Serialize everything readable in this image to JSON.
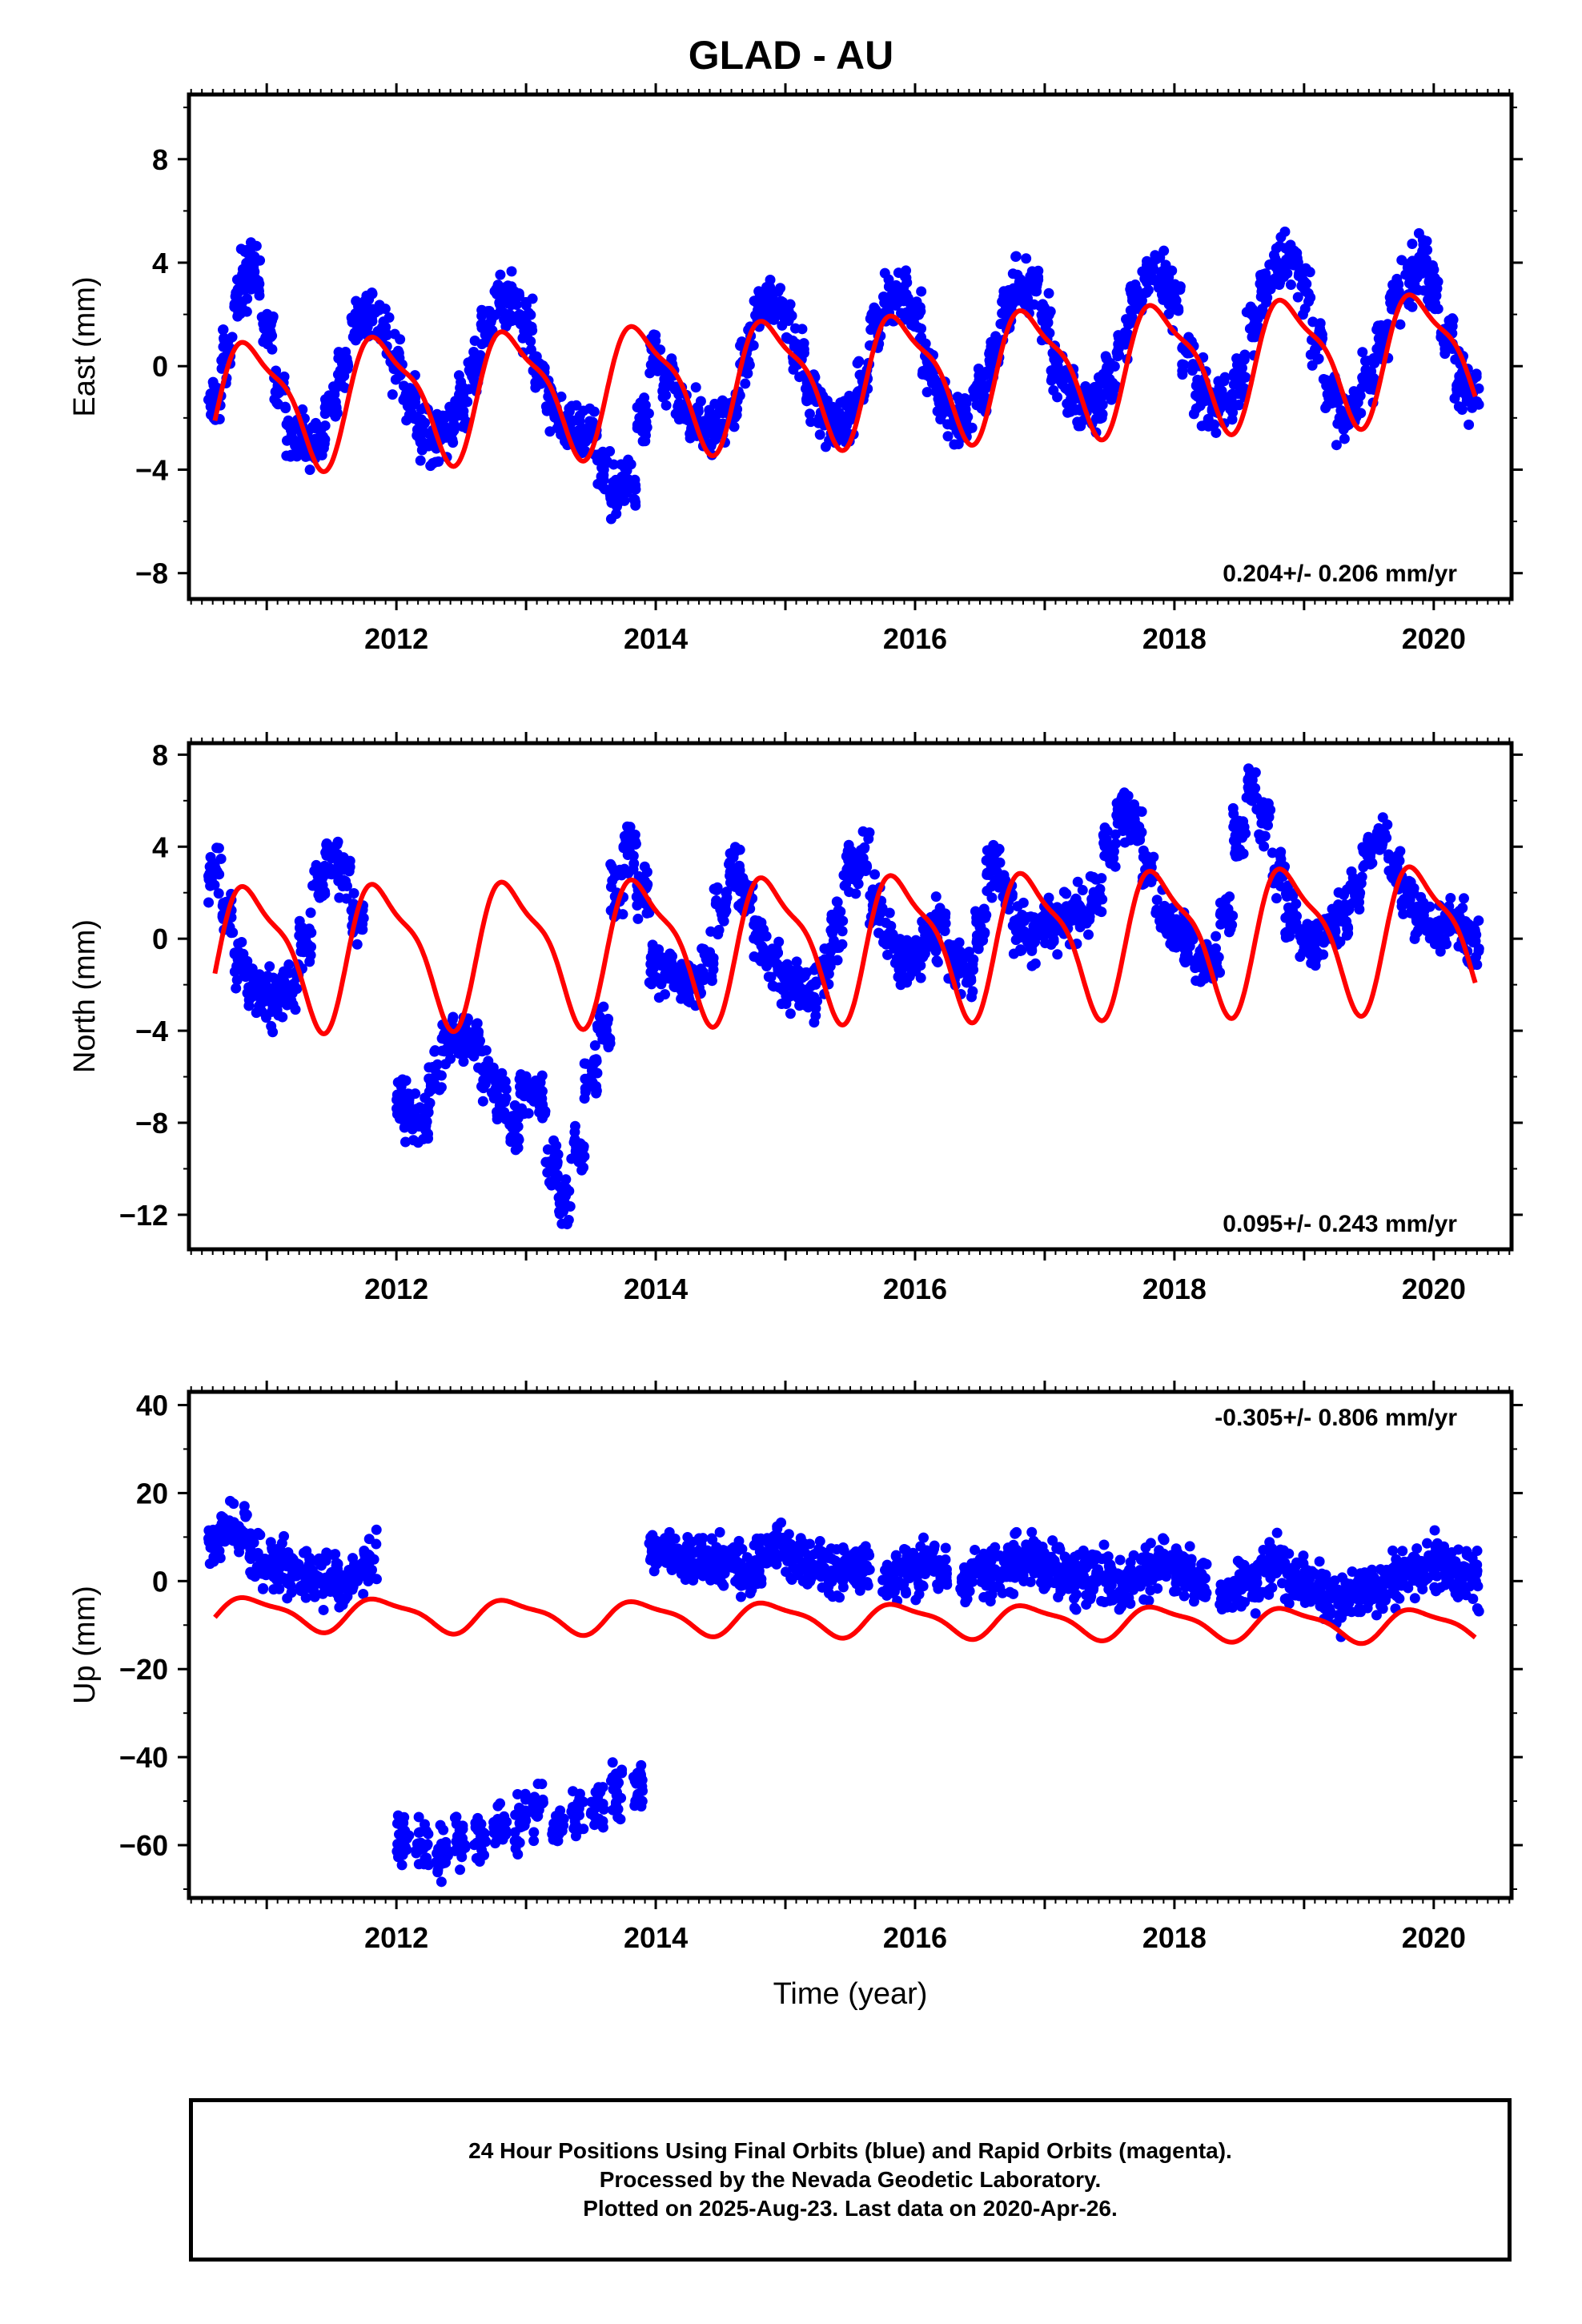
{
  "title": "GLAD - AU",
  "chart_data": [
    {
      "type": "scatter",
      "ylabel": "East (mm)",
      "xlabel": "",
      "xlim": [
        2010.4,
        2020.6
      ],
      "ylim": [
        -9,
        10.5
      ],
      "xticks": [
        "2012",
        "2014",
        "2016",
        "2018",
        "2020"
      ],
      "yticks": [
        "8",
        "4",
        "0",
        "−4",
        "−8"
      ],
      "rate_label": "0.204+/- 0.206 mm/yr",
      "rate_position": "bottom-right",
      "series": [
        {
          "kind": "points",
          "color": "#0000ff",
          "x": [
            2010.6,
            2010.7,
            2010.8,
            2010.85,
            2010.9,
            2011.0,
            2011.1,
            2011.2,
            2011.3,
            2011.4,
            2011.5,
            2011.6,
            2011.7,
            2011.8,
            2011.9,
            2012.0,
            2012.1,
            2012.2,
            2012.3,
            2012.4,
            2012.5,
            2012.6,
            2012.7,
            2012.8,
            2012.9,
            2013.0,
            2013.1,
            2013.2,
            2013.3,
            2013.4,
            2013.5,
            2013.6,
            2013.7,
            2013.8,
            2013.9,
            2014.0,
            2014.1,
            2014.2,
            2014.3,
            2014.4,
            2014.5,
            2014.6,
            2014.7,
            2014.8,
            2014.9,
            2015.0,
            2015.1,
            2015.2,
            2015.3,
            2015.4,
            2015.5,
            2015.6,
            2015.7,
            2015.8,
            2015.9,
            2016.0,
            2016.1,
            2016.2,
            2016.3,
            2016.4,
            2016.5,
            2016.6,
            2016.7,
            2016.8,
            2016.9,
            2017.0,
            2017.1,
            2017.2,
            2017.3,
            2017.4,
            2017.5,
            2017.6,
            2017.7,
            2017.8,
            2017.9,
            2018.0,
            2018.1,
            2018.2,
            2018.3,
            2018.4,
            2018.5,
            2018.6,
            2018.7,
            2018.8,
            2018.9,
            2019.0,
            2019.1,
            2019.2,
            2019.3,
            2019.4,
            2019.5,
            2019.6,
            2019.7,
            2019.8,
            2019.9,
            2020.0,
            2020.1,
            2020.2,
            2020.3
          ],
          "y": [
            -1.5,
            0.5,
            2.5,
            4.0,
            3.5,
            1.5,
            -1.0,
            -2.5,
            -3.0,
            -2.8,
            -1.5,
            0.0,
            1.5,
            2.0,
            1.5,
            0.0,
            -1.5,
            -2.5,
            -2.8,
            -2.5,
            -1.5,
            0.0,
            1.5,
            2.5,
            2.5,
            1.5,
            0.0,
            -1.5,
            -2.5,
            -2.5,
            -2.5,
            -4.0,
            -5.0,
            -4.5,
            -2.0,
            0.5,
            -0.5,
            -1.5,
            -2.0,
            -2.5,
            -2.5,
            -1.5,
            0.5,
            2.0,
            2.5,
            2.0,
            0.5,
            -1.0,
            -2.0,
            -2.5,
            -2.0,
            -0.5,
            1.5,
            2.5,
            2.8,
            2.0,
            0.0,
            -1.5,
            -2.0,
            -2.0,
            -1.0,
            0.5,
            2.0,
            3.0,
            3.0,
            2.0,
            0.0,
            -1.0,
            -1.5,
            -1.5,
            -0.5,
            1.0,
            2.5,
            3.5,
            3.5,
            2.5,
            0.5,
            -1.0,
            -1.5,
            -1.5,
            -0.5,
            1.5,
            3.0,
            4.0,
            4.0,
            3.0,
            1.0,
            -1.0,
            -2.0,
            -1.5,
            -0.5,
            1.0,
            2.5,
            3.5,
            4.0,
            3.0,
            1.0,
            -0.5,
            -1.0
          ]
        },
        {
          "kind": "fit",
          "color": "#ff0000",
          "amplitude": 2.3,
          "trend_per_year": 0.204,
          "offset": -0.5,
          "x_range": [
            2010.6,
            2020.32
          ]
        }
      ]
    },
    {
      "type": "scatter",
      "ylabel": "North (mm)",
      "xlabel": "",
      "xlim": [
        2010.4,
        2020.6
      ],
      "ylim": [
        -13.5,
        8.5
      ],
      "xticks": [
        "2012",
        "2014",
        "2016",
        "2018",
        "2020"
      ],
      "yticks": [
        "8",
        "4",
        "0",
        "−4",
        "−8",
        "−12"
      ],
      "rate_label": "0.095+/- 0.243 mm/yr",
      "rate_position": "bottom-right",
      "series": [
        {
          "kind": "points",
          "color": "#0000ff",
          "x": [
            2010.6,
            2010.7,
            2010.8,
            2010.9,
            2011.0,
            2011.1,
            2011.2,
            2011.3,
            2011.4,
            2011.5,
            2011.6,
            2011.7,
            2012.05,
            2012.1,
            2012.2,
            2012.3,
            2012.4,
            2012.5,
            2012.6,
            2012.7,
            2012.8,
            2012.9,
            2013.0,
            2013.1,
            2013.2,
            2013.3,
            2013.4,
            2013.5,
            2013.6,
            2013.7,
            2013.8,
            2013.9,
            2014.0,
            2014.1,
            2014.2,
            2014.3,
            2014.4,
            2014.5,
            2014.6,
            2014.7,
            2014.8,
            2014.9,
            2015.0,
            2015.1,
            2015.2,
            2015.3,
            2015.4,
            2015.5,
            2015.6,
            2015.7,
            2015.8,
            2015.9,
            2016.0,
            2016.1,
            2016.2,
            2016.3,
            2016.4,
            2016.5,
            2016.6,
            2016.7,
            2016.8,
            2016.9,
            2017.0,
            2017.1,
            2017.2,
            2017.3,
            2017.4,
            2017.5,
            2017.6,
            2017.7,
            2017.8,
            2017.9,
            2018.0,
            2018.1,
            2018.2,
            2018.3,
            2018.4,
            2018.5,
            2018.6,
            2018.7,
            2018.8,
            2018.9,
            2019.0,
            2019.1,
            2019.2,
            2019.3,
            2019.4,
            2019.5,
            2019.6,
            2019.7,
            2019.8,
            2019.9,
            2020.0,
            2020.1,
            2020.2,
            2020.3
          ],
          "y": [
            3.0,
            1.0,
            -1.0,
            -2.0,
            -2.5,
            -2.5,
            -2.0,
            0.0,
            2.5,
            3.5,
            3.0,
            1.0,
            -7.0,
            -7.5,
            -8.0,
            -6.0,
            -4.5,
            -4.0,
            -4.5,
            -6.0,
            -7.0,
            -8.0,
            -6.5,
            -7.0,
            -10.0,
            -11.5,
            -9.0,
            -6.0,
            -4.0,
            2.0,
            4.0,
            2.0,
            -1.0,
            -1.5,
            -2.0,
            -2.0,
            -1.0,
            1.5,
            3.0,
            2.0,
            0.0,
            -1.0,
            -2.0,
            -2.0,
            -2.5,
            -1.5,
            0.5,
            3.0,
            3.5,
            1.5,
            0.0,
            -1.0,
            -1.0,
            0.0,
            0.5,
            -1.0,
            -1.5,
            0.5,
            3.0,
            2.0,
            0.5,
            0.0,
            0.5,
            0.5,
            1.0,
            1.0,
            2.0,
            4.0,
            5.5,
            5.0,
            3.0,
            1.0,
            0.5,
            0.0,
            -1.0,
            -1.0,
            1.0,
            4.5,
            6.5,
            5.0,
            3.0,
            1.0,
            0.0,
            0.0,
            0.5,
            1.0,
            2.0,
            4.0,
            4.5,
            3.0,
            2.0,
            1.0,
            0.5,
            0.5,
            0.5,
            0.0
          ]
        },
        {
          "kind": "fit",
          "color": "#ff0000",
          "amplitude": 2.9,
          "trend_per_year": 0.095,
          "offset": -0.2,
          "x_range": [
            2010.6,
            2020.32
          ]
        }
      ]
    },
    {
      "type": "scatter",
      "ylabel": "Up (mm)",
      "xlabel": "Time (year)",
      "xlim": [
        2010.4,
        2020.6
      ],
      "ylim": [
        -72,
        43
      ],
      "xticks": [
        "2012",
        "2014",
        "2016",
        "2018",
        "2020"
      ],
      "yticks": [
        "40",
        "20",
        "0",
        "−20",
        "−40",
        "−60"
      ],
      "rate_label": "-0.305+/- 0.806 mm/yr",
      "rate_position": "top-right",
      "series": [
        {
          "kind": "points",
          "color": "#0000ff",
          "x": [
            2010.6,
            2010.7,
            2010.8,
            2010.9,
            2011.0,
            2011.1,
            2011.2,
            2011.3,
            2011.4,
            2011.5,
            2011.6,
            2011.7,
            2011.8,
            2012.05,
            2012.2,
            2012.35,
            2012.5,
            2012.65,
            2012.8,
            2012.95,
            2013.1,
            2013.25,
            2013.4,
            2013.55,
            2013.7,
            2013.85,
            2014.0,
            2014.1,
            2014.2,
            2014.3,
            2014.4,
            2014.5,
            2014.6,
            2014.7,
            2014.8,
            2014.9,
            2015.0,
            2015.1,
            2015.2,
            2015.3,
            2015.4,
            2015.5,
            2015.6,
            2015.8,
            2015.9,
            2016.0,
            2016.1,
            2016.2,
            2016.4,
            2016.5,
            2016.6,
            2016.7,
            2016.8,
            2016.9,
            2017.0,
            2017.1,
            2017.2,
            2017.3,
            2017.4,
            2017.5,
            2017.6,
            2017.7,
            2017.8,
            2017.9,
            2018.0,
            2018.1,
            2018.2,
            2018.4,
            2018.5,
            2018.6,
            2018.7,
            2018.8,
            2018.9,
            2019.0,
            2019.1,
            2019.2,
            2019.3,
            2019.4,
            2019.5,
            2019.6,
            2019.7,
            2019.8,
            2019.9,
            2020.0,
            2020.1,
            2020.2,
            2020.3
          ],
          "y": [
            8,
            12,
            10,
            6,
            4,
            3,
            2,
            0,
            1,
            2,
            0,
            2,
            5,
            -58,
            -60,
            -62,
            -60,
            -58,
            -57,
            -55,
            -52,
            -55,
            -52,
            -50,
            -48,
            -46,
            7,
            6,
            5,
            4,
            4,
            5,
            3,
            2,
            5,
            6,
            7,
            5,
            4,
            3,
            3,
            4,
            2,
            0,
            2,
            3,
            4,
            2,
            0,
            2,
            1,
            3,
            5,
            6,
            4,
            2,
            0,
            1,
            2,
            0,
            -1,
            0,
            2,
            4,
            3,
            1,
            0,
            -2,
            -1,
            0,
            3,
            4,
            1,
            0,
            -2,
            -4,
            -5,
            -3,
            -2,
            0,
            1,
            2,
            3,
            4,
            2,
            1,
            0
          ]
        },
        {
          "kind": "fit",
          "color": "#ff0000",
          "amplitude": 3.5,
          "trend_per_year": -0.305,
          "offset": -8.5,
          "x_range": [
            2010.6,
            2020.32
          ]
        }
      ]
    }
  ],
  "caption": {
    "line1": "24 Hour Positions Using Final Orbits (blue) and Rapid Orbits (magenta).",
    "line2": "Processed by the Nevada Geodetic Laboratory.",
    "line3": "Plotted on 2025-Aug-23. Last data on 2020-Apr-26."
  }
}
